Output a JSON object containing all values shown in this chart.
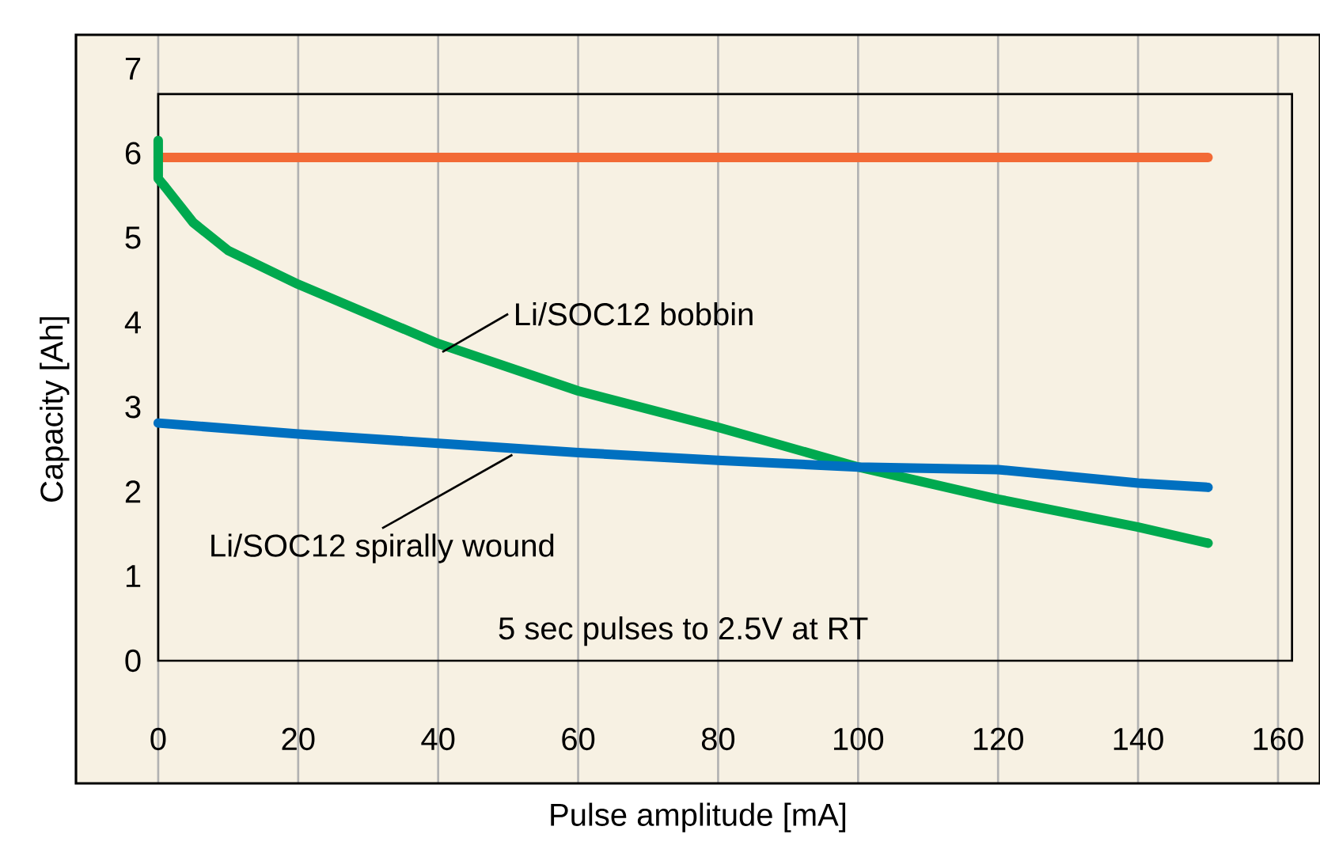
{
  "chart_data": {
    "type": "line",
    "xlabel": "Pulse amplitude [mA]",
    "ylabel": "Capacity [Ah]",
    "xlim": [
      -11.75,
      166
    ],
    "ylim": [
      -1.45,
      7.4
    ],
    "xticks": [
      0,
      20,
      40,
      60,
      80,
      100,
      120,
      140,
      160
    ],
    "yticks": [
      0,
      1,
      2,
      3,
      4,
      5,
      6,
      7
    ],
    "grid": "x",
    "legend": false,
    "marker": "none",
    "line_style": "solid",
    "annotations": [
      "5 sec pulses to 2.5V at RT"
    ],
    "series": [
      {
        "color": "#f26a36",
        "x": [
          0,
          150
        ],
        "values": [
          5.95,
          5.95
        ]
      },
      {
        "name": "Li/SOC12 bobbin",
        "color": "#00a94f",
        "x": [
          0,
          0,
          1,
          5,
          10,
          20,
          40,
          60,
          80,
          100,
          120,
          140,
          150
        ],
        "values": [
          6.15,
          5.7,
          5.6,
          5.18,
          4.85,
          4.45,
          3.75,
          3.19,
          2.76,
          2.29,
          1.91,
          1.58,
          1.39
        ]
      },
      {
        "name": "Li/SOC12 spirally wound",
        "color": "#0070c0",
        "x": [
          0,
          20,
          40,
          60,
          80,
          100,
          120,
          140,
          150
        ],
        "values": [
          2.81,
          2.68,
          2.57,
          2.46,
          2.37,
          2.29,
          2.26,
          2.1,
          2.05
        ]
      }
    ]
  }
}
